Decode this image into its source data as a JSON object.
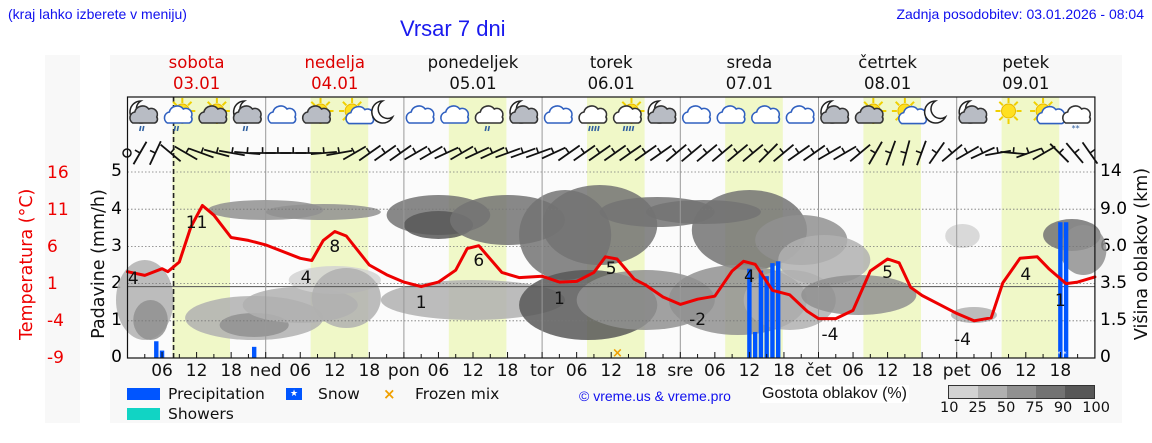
{
  "header": {
    "hint": "(kraj lahko izberete v meniju)",
    "title": "Vrsar 7 dni",
    "updated": "Zadnja posodobitev: 03.01.2026 - 08:04"
  },
  "days": [
    {
      "name": "sobota",
      "date": "03.01",
      "weekend": true
    },
    {
      "name": "nedelja",
      "date": "04.01",
      "weekend": true
    },
    {
      "name": "ponedeljek",
      "date": "05.01",
      "weekend": false
    },
    {
      "name": "torek",
      "date": "06.01",
      "weekend": false
    },
    {
      "name": "sreda",
      "date": "07.01",
      "weekend": false
    },
    {
      "name": "četrtek",
      "date": "08.01",
      "weekend": false
    },
    {
      "name": "petek",
      "date": "09.01",
      "weekend": false
    }
  ],
  "weather_icons": [
    "moon-cloud-light-rain",
    "sun-cloud-light-rain",
    "sun-cloud",
    "moon-cloud-light-rain",
    "cloudy",
    "sun-cloud",
    "sun-small-cloud",
    "moon",
    "cloudy",
    "cloudy",
    "cloudy-light-rain",
    "moon-cloud",
    "cloudy",
    "cloudy-rain",
    "sun-cloud-rain",
    "moon-cloud",
    "cloudy",
    "cloudy",
    "cloudy",
    "cloudy",
    "moon-cloud",
    "sun-cloud",
    "sun-small-cloud",
    "moon",
    "moon-cloud",
    "sun",
    "sun-small-cloud",
    "cloudy-snow"
  ],
  "axes": {
    "left_temp_label": "Temperatura (°C)",
    "left_temp_ticks": [
      "16",
      "11",
      "6",
      "1",
      "-4",
      "-9"
    ],
    "left_precip_label": "Padavine (mm/h)",
    "left_precip_ticks": [
      "5",
      "4",
      "3",
      "2",
      "1",
      "0"
    ],
    "right_label": "Višina oblakov (km)",
    "right_ticks": [
      "14",
      "9.0",
      "6.0",
      "3.5",
      "1.5",
      "0"
    ],
    "x_ticks": [
      "06",
      "12",
      "18",
      "ned",
      "06",
      "12",
      "18",
      "pon",
      "06",
      "12",
      "18",
      "tor",
      "06",
      "12",
      "18",
      "sre",
      "06",
      "12",
      "18",
      "čet",
      "06",
      "12",
      "18",
      "pet",
      "06",
      "12",
      "18"
    ]
  },
  "legend": {
    "precipitation": "Precipitation",
    "snow": "Snow",
    "frozen_mix": "Frozen mix",
    "showers": "Showers",
    "copyright": "© vreme.us & vreme.pro",
    "cloud_density_label": "Gostota oblakov (%)",
    "cloud_density_ticks": [
      "10",
      "25",
      "50",
      "75",
      "90",
      "100"
    ],
    "cloud_density_colors": [
      "#d2d2d2",
      "#b0b0b0",
      "#909090",
      "#737373",
      "#585858"
    ]
  },
  "colors": {
    "temperature": "#ee0000",
    "precipitation": "#0055ff",
    "showers": "#11d4c4",
    "frozen_mix": "#f0a000",
    "daylight_band": "#f0f8c8",
    "title": "#1a1aee"
  },
  "chart_data": {
    "type": "line",
    "title": "Vrsar 7 dni",
    "x_unit": "hours from 03.01 00:00",
    "xlabel": "",
    "ylabel_left": "Temperatura (°C) / Padavine (mm/h)",
    "ylabel_right": "Višina oblakov (km)",
    "ylim_precip": [
      0,
      5
    ],
    "ylim_temp": [
      -9,
      16
    ],
    "grid": true,
    "current_time_marker_hour": 8,
    "series": [
      {
        "name": "Temperatura (°C)",
        "x": [
          0,
          3,
          6,
          7,
          9,
          11,
          13,
          15,
          18,
          21,
          24,
          30,
          32,
          34,
          36,
          38,
          42,
          45,
          48,
          51,
          54,
          57,
          59,
          61,
          65,
          68,
          72,
          75,
          78,
          81,
          83,
          85,
          88,
          90,
          93,
          96,
          99,
          102,
          105,
          107,
          109,
          112,
          115,
          118,
          120,
          123,
          126,
          129,
          132,
          134,
          136,
          138,
          141,
          144,
          147,
          150,
          152,
          155,
          158,
          160,
          163,
          165,
          168
        ],
        "values": [
          2.6,
          2.1,
          3.0,
          2.6,
          3.9,
          8.6,
          11.5,
          10.2,
          7.2,
          6.8,
          6.2,
          4.4,
          4.1,
          6.8,
          8.0,
          7.4,
          3.5,
          2.2,
          1.2,
          0.6,
          1.2,
          2.8,
          5.7,
          6.1,
          2.5,
          1.8,
          2.0,
          1.2,
          1.3,
          2.5,
          4.6,
          4.3,
          1.6,
          0.8,
          -0.8,
          -1.8,
          -1.1,
          -0.7,
          2.7,
          4.0,
          3.6,
          0.1,
          -0.5,
          -2.7,
          -3.7,
          -3.7,
          -2.6,
          2.7,
          4.3,
          3.8,
          0.5,
          -0.6,
          -1.8,
          -3.0,
          -4.0,
          -3.6,
          1.1,
          4.4,
          4.6,
          3.0,
          1.0,
          1.2,
          1.9
        ]
      },
      {
        "name": "Precipitation (mm/h)",
        "x": [
          5,
          6,
          22,
          109,
          108,
          110,
          111,
          112,
          113,
          162,
          163
        ],
        "values": [
          0.45,
          0.2,
          0.3,
          0.7,
          2.4,
          2.35,
          2.2,
          2.55,
          2.6,
          3.65,
          3.65
        ]
      }
    ],
    "temperature_labels": [
      {
        "hour": 1,
        "value": "4"
      },
      {
        "hour": 12,
        "value": "11"
      },
      {
        "hour": 31,
        "value": "4"
      },
      {
        "hour": 36,
        "value": "8"
      },
      {
        "hour": 51,
        "value": "1"
      },
      {
        "hour": 61,
        "value": "6"
      },
      {
        "hour": 75,
        "value": "1"
      },
      {
        "hour": 84,
        "value": "5"
      },
      {
        "hour": 99,
        "value": "-2"
      },
      {
        "hour": 108,
        "value": "4"
      },
      {
        "hour": 122,
        "value": "-4"
      },
      {
        "hour": 132,
        "value": "5"
      },
      {
        "hour": 145,
        "value": "-4"
      },
      {
        "hour": 156,
        "value": "4"
      },
      {
        "hour": 162,
        "value": "1"
      }
    ],
    "frozen_mix_hours": [
      85
    ],
    "snow_hours": [
      162,
      163
    ]
  }
}
